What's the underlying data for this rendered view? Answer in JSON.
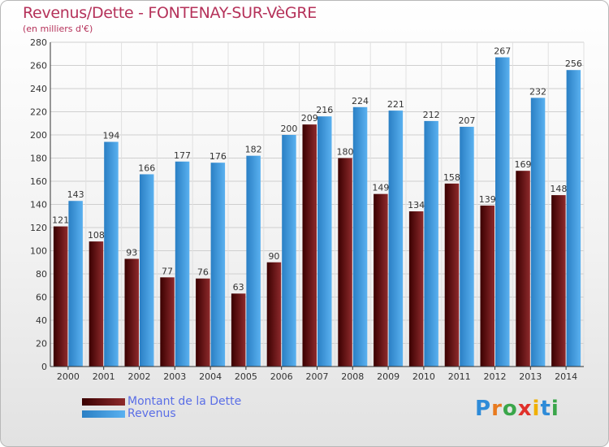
{
  "header": {
    "title": "Revenus/Dette - FONTENAY-SUR-VèGRE",
    "subtitle": "(en milliers d'€)"
  },
  "legend": {
    "items": [
      {
        "label": "Montant de la Dette",
        "color": "#7a1518"
      },
      {
        "label": "Revenus",
        "color": "#4aa3e6"
      }
    ]
  },
  "logo": {
    "text": "Proxiti"
  },
  "chart_data": {
    "type": "bar",
    "title": "Revenus/Dette - FONTENAY-SUR-VèGRE",
    "ylabel": "",
    "xlabel": "",
    "ylim": [
      0,
      280
    ],
    "ytick_step": 20,
    "grid": true,
    "legend_position": "bottom-left",
    "categories": [
      "2000",
      "2001",
      "2002",
      "2003",
      "2004",
      "2005",
      "2006",
      "2007",
      "2008",
      "2009",
      "2010",
      "2011",
      "2012",
      "2013",
      "2014"
    ],
    "series": [
      {
        "name": "Montant de la Dette",
        "color": "#7a1518",
        "values": [
          121,
          108,
          93,
          77,
          76,
          63,
          90,
          209,
          180,
          149,
          134,
          158,
          139,
          169,
          148
        ]
      },
      {
        "name": "Revenus",
        "color": "#4aa3e6",
        "values": [
          143,
          194,
          166,
          177,
          176,
          182,
          200,
          216,
          224,
          221,
          212,
          207,
          267,
          232,
          256
        ]
      }
    ]
  }
}
